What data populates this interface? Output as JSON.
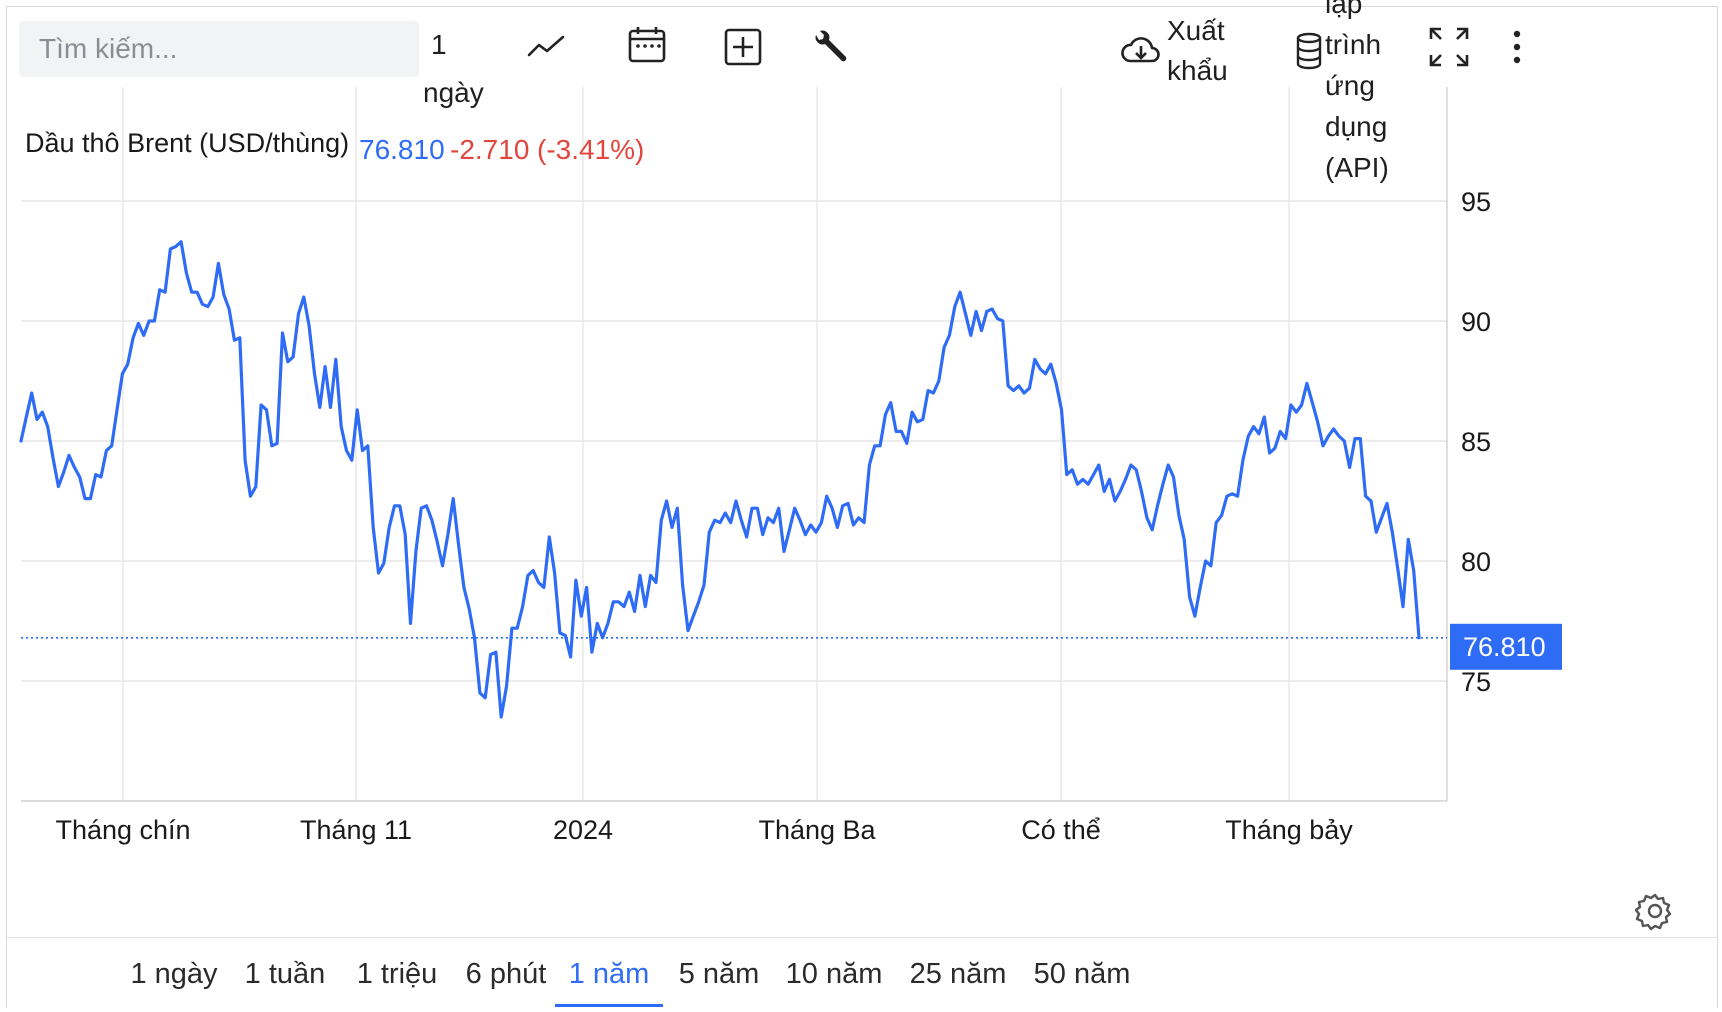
{
  "toolbar": {
    "search_placeholder": "Tìm kiếm...",
    "interval_label_line1": "1",
    "interval_label_line2": "ngày",
    "chart_type_icon": "line-chart-icon",
    "calendar_icon": "calendar-icon",
    "compare_icon": "plus-box-icon",
    "indicators_icon": "wrench-icon",
    "export_label_line1": "Xuất",
    "export_label_line2": "khẩu",
    "export_icon": "cloud-download-icon",
    "api_label_lines": [
      "lập",
      "trình",
      "ứng",
      "dụng",
      "(API)"
    ],
    "api_icon": "database-icon",
    "fullscreen_icon": "fullscreen-icon",
    "more_icon": "more-vertical-icon"
  },
  "header": {
    "instrument": "Dầu thô Brent (USD/thùng)",
    "last_price": "76.810",
    "change": "-2.710",
    "change_percent": "(-3.41%)"
  },
  "colors": {
    "line": "#2f6cf6",
    "price_up": "#2f6cf6",
    "price_down": "#e0463e",
    "grid": "#e6e6e6",
    "tag_bg": "#2f6cf6"
  },
  "chart_data": {
    "type": "line",
    "title": "Dầu thô Brent (USD/thùng)",
    "x_tick_labels": [
      "Tháng chín",
      "Tháng 11",
      "2024",
      "Tháng Ba",
      "Có thể",
      "Tháng bảy"
    ],
    "y_ticks": [
      75,
      80,
      85,
      90,
      95
    ],
    "ylim": [
      70,
      98
    ],
    "grid": true,
    "last_value_label": "76.810",
    "series": [
      {
        "values": [
          85.0,
          86.0,
          87.0,
          85.9,
          86.2,
          85.6,
          84.3,
          83.1,
          83.7,
          84.4,
          83.9,
          83.5,
          82.6,
          82.6,
          83.6,
          83.5,
          84.6,
          84.8,
          86.3,
          87.8,
          88.2,
          89.3,
          89.9,
          89.4,
          90.0,
          90.0,
          91.3,
          91.2,
          93.0,
          93.1,
          93.3,
          92.0,
          91.2,
          91.2,
          90.7,
          90.6,
          91.0,
          92.4,
          91.1,
          90.5,
          89.2,
          89.3,
          84.2,
          82.7,
          83.1,
          86.5,
          86.3,
          84.8,
          84.9,
          89.5,
          88.3,
          88.5,
          90.3,
          91.0,
          89.8,
          87.8,
          86.4,
          88.1,
          86.4,
          88.4,
          85.6,
          84.6,
          84.2,
          86.3,
          84.6,
          84.8,
          81.4,
          79.5,
          79.9,
          81.4,
          82.3,
          82.3,
          81.1,
          77.4,
          80.4,
          82.2,
          82.3,
          81.7,
          80.8,
          79.8,
          81.1,
          82.6,
          80.7,
          78.9,
          78.0,
          76.8,
          74.5,
          74.3,
          76.1,
          76.2,
          73.5,
          74.8,
          77.2,
          77.2,
          78.1,
          79.4,
          79.6,
          79.1,
          78.9,
          81.0,
          79.5,
          77.0,
          76.9,
          76.0,
          79.2,
          77.7,
          78.9,
          76.2,
          77.4,
          76.8,
          77.4,
          78.3,
          78.3,
          78.1,
          78.7,
          77.9,
          79.4,
          78.1,
          79.4,
          79.1,
          81.7,
          82.5,
          81.4,
          82.2,
          79.0,
          77.1,
          77.7,
          78.3,
          79.0,
          81.2,
          81.7,
          81.6,
          82.0,
          81.6,
          82.5,
          81.7,
          81.0,
          82.2,
          82.2,
          81.1,
          81.8,
          81.6,
          82.2,
          80.4,
          81.3,
          82.2,
          81.7,
          81.1,
          81.5,
          81.2,
          81.6,
          82.7,
          82.2,
          81.4,
          82.3,
          82.4,
          81.5,
          81.8,
          81.6,
          84.0,
          84.8,
          84.8,
          86.1,
          86.6,
          85.4,
          85.4,
          84.9,
          86.2,
          85.8,
          85.9,
          87.1,
          87.0,
          87.5,
          88.9,
          89.4,
          90.6,
          91.2,
          90.3,
          89.4,
          90.4,
          89.6,
          90.4,
          90.5,
          90.1,
          90.0,
          87.3,
          87.1,
          87.3,
          87.0,
          87.2,
          88.4,
          88.0,
          87.8,
          88.2,
          87.4,
          86.3,
          83.6,
          83.8,
          83.2,
          83.4,
          83.2,
          83.6,
          84.0,
          82.9,
          83.4,
          82.5,
          82.9,
          83.4,
          84.0,
          83.8,
          82.9,
          81.8,
          81.3,
          82.3,
          83.2,
          84.0,
          83.5,
          81.9,
          80.9,
          78.5,
          77.7,
          78.9,
          80.0,
          79.8,
          81.6,
          81.9,
          82.7,
          82.8,
          82.7,
          84.2,
          85.2,
          85.6,
          85.3,
          86.0,
          84.5,
          84.7,
          85.4,
          85.1,
          86.5,
          86.2,
          86.5,
          87.4,
          86.6,
          85.8,
          84.8,
          85.2,
          85.5,
          85.2,
          85.0,
          83.9,
          85.1,
          85.1,
          82.7,
          82.5,
          81.2,
          81.8,
          82.4,
          81.2,
          79.7,
          78.1,
          80.9,
          79.6,
          76.8
        ]
      }
    ]
  },
  "bottom_bar": {
    "ranges": [
      "1 ngày",
      "1 tuần",
      "1 triệu",
      "6 phút",
      "1 năm",
      "5 năm",
      "10 năm",
      "25 năm",
      "50 năm"
    ],
    "active": "1 năm",
    "settings_icon": "gear-icon"
  }
}
